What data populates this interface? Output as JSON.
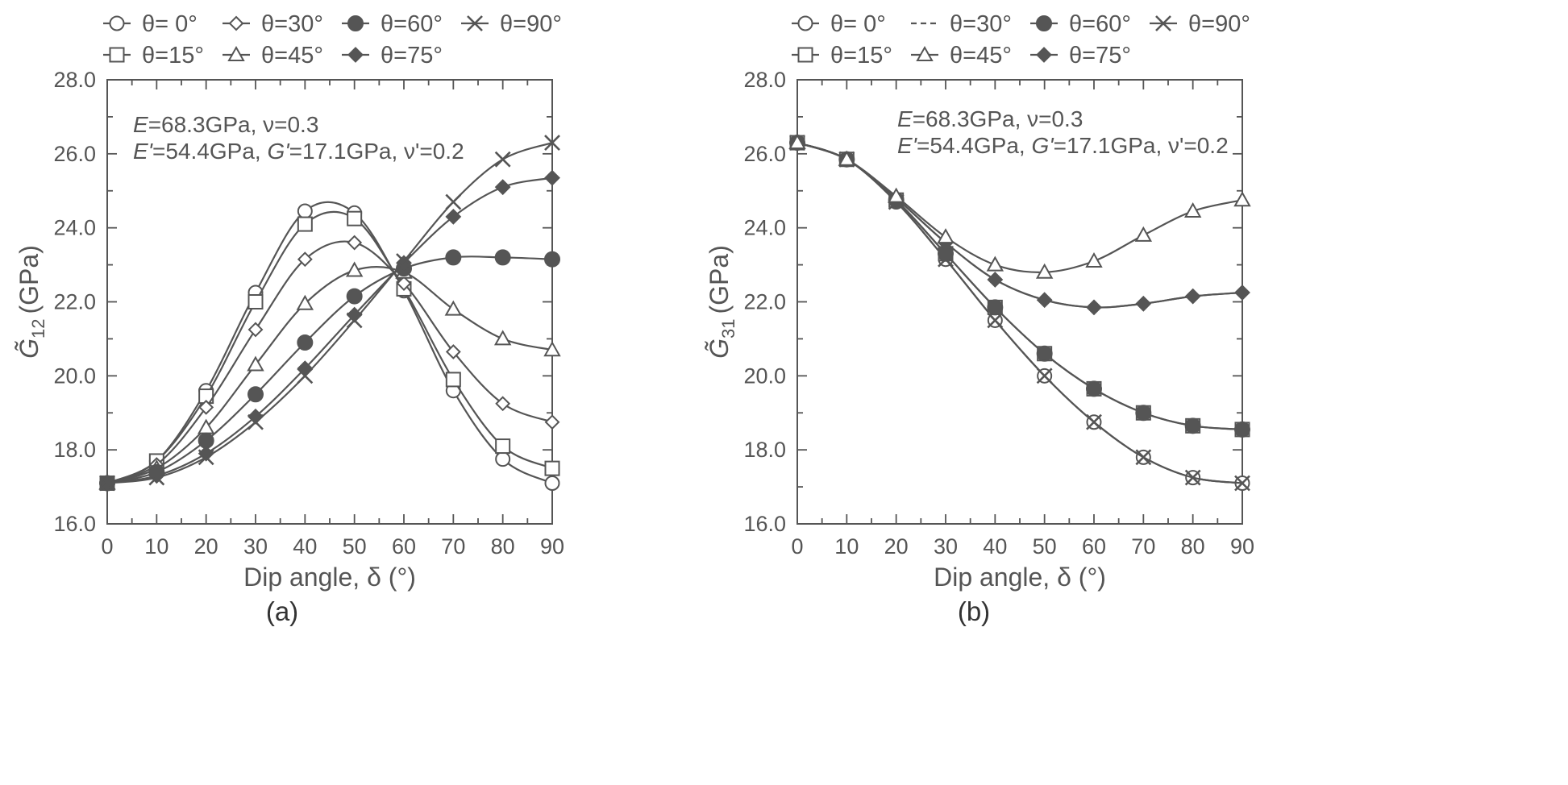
{
  "figure": {
    "panels": [
      "(a)",
      "(b)"
    ]
  },
  "colors": {
    "line": "#555555",
    "marker_fill": "#555555",
    "marker_open": "#ffffff",
    "axis": "#555555",
    "text": "#555555"
  },
  "chart_data": [
    {
      "type": "line",
      "panel_label": "(a)",
      "xlabel": "Dip angle, δ (°)",
      "ylabel_symbol": "G̃",
      "ylabel_subscript": "12",
      "ylabel_unit": "(GPa)",
      "x": [
        0,
        10,
        20,
        30,
        40,
        50,
        60,
        70,
        80,
        90
      ],
      "xlim": [
        0,
        90
      ],
      "ylim": [
        16.0,
        28.0
      ],
      "xticks": [
        "0",
        "10",
        "20",
        "30",
        "40",
        "50",
        "60",
        "70",
        "80",
        "90"
      ],
      "yticks": [
        "16.0",
        "18.0",
        "20.0",
        "22.0",
        "24.0",
        "26.0",
        "28.0"
      ],
      "annotation": {
        "line1": {
          "e_sym": "E",
          "e_val": "=68.3GPa, ν=0.3"
        },
        "line2": {
          "e_sym": "E'",
          "e_val": "=54.4GPa, ",
          "g_sym": "G'",
          "g_val": "=17.1GPa, ν'=0.2"
        }
      },
      "legend": [
        {
          "label": "θ= 0°",
          "marker": "circle-open"
        },
        {
          "label": "θ=30°",
          "marker": "diamond-open"
        },
        {
          "label": "θ=60°",
          "marker": "circle-filled"
        },
        {
          "label": "θ=90°",
          "marker": "cross"
        },
        {
          "label": "θ=15°",
          "marker": "square-open"
        },
        {
          "label": "θ=45°",
          "marker": "triangle-open"
        },
        {
          "label": "θ=75°",
          "marker": "diamond-filled"
        }
      ],
      "series": [
        {
          "name": "θ= 0°",
          "marker": "circle-open",
          "values": [
            17.1,
            17.7,
            19.6,
            22.25,
            24.45,
            24.4,
            22.3,
            19.6,
            17.75,
            17.1
          ]
        },
        {
          "name": "θ=15°",
          "marker": "square-open",
          "values": [
            17.1,
            17.7,
            19.45,
            22.0,
            24.1,
            24.25,
            22.35,
            19.9,
            18.1,
            17.5
          ]
        },
        {
          "name": "θ=30°",
          "marker": "diamond-open",
          "values": [
            17.1,
            17.6,
            19.15,
            21.25,
            23.15,
            23.6,
            22.5,
            20.65,
            19.25,
            18.75
          ]
        },
        {
          "name": "θ=45°",
          "marker": "triangle-open",
          "values": [
            17.1,
            17.5,
            18.6,
            20.3,
            21.95,
            22.85,
            22.8,
            21.8,
            21.0,
            20.7
          ]
        },
        {
          "name": "θ=60°",
          "marker": "circle-filled",
          "values": [
            17.1,
            17.4,
            18.25,
            19.5,
            20.9,
            22.15,
            22.9,
            23.2,
            23.2,
            23.15
          ]
        },
        {
          "name": "θ=75°",
          "marker": "diamond-filled",
          "values": [
            17.1,
            17.3,
            17.9,
            18.9,
            20.2,
            21.65,
            23.05,
            24.3,
            25.1,
            25.35
          ]
        },
        {
          "name": "θ=90°",
          "marker": "cross",
          "values": [
            17.1,
            17.25,
            17.8,
            18.75,
            20.0,
            21.5,
            23.1,
            24.7,
            25.85,
            26.3
          ]
        }
      ]
    },
    {
      "type": "line",
      "panel_label": "(b)",
      "xlabel": "Dip angle, δ (°)",
      "ylabel_symbol": "G̃",
      "ylabel_subscript": "31",
      "ylabel_unit": "(GPa)",
      "x": [
        0,
        10,
        20,
        30,
        40,
        50,
        60,
        70,
        80,
        90
      ],
      "xlim": [
        0,
        90
      ],
      "ylim": [
        16.0,
        28.0
      ],
      "xticks": [
        "0",
        "10",
        "20",
        "30",
        "40",
        "50",
        "60",
        "70",
        "80",
        "90"
      ],
      "yticks": [
        "16.0",
        "18.0",
        "20.0",
        "22.0",
        "24.0",
        "26.0",
        "28.0"
      ],
      "annotation": {
        "line1": {
          "e_sym": "E",
          "e_val": "=68.3GPa, ν=0.3"
        },
        "line2": {
          "e_sym": "E'",
          "e_val": "=54.4GPa, ",
          "g_sym": "G'",
          "g_val": "=17.1GPa, ν'=0.2"
        }
      },
      "legend": [
        {
          "label": "θ= 0°",
          "marker": "circle-open"
        },
        {
          "label": "θ=30°",
          "marker": "dashed"
        },
        {
          "label": "θ=60°",
          "marker": "circle-filled"
        },
        {
          "label": "θ=90°",
          "marker": "cross"
        },
        {
          "label": "θ=15°",
          "marker": "square-open"
        },
        {
          "label": "θ=45°",
          "marker": "triangle-open"
        },
        {
          "label": "θ=75°",
          "marker": "diamond-filled"
        }
      ],
      "series": [
        {
          "name": "θ= 0°",
          "marker": "circle-open",
          "values": [
            26.3,
            25.85,
            24.7,
            23.15,
            21.5,
            20.0,
            18.75,
            17.8,
            17.25,
            17.1
          ]
        },
        {
          "name": "θ=90°",
          "marker": "cross",
          "values": [
            26.3,
            25.85,
            24.7,
            23.15,
            21.5,
            20.0,
            18.75,
            17.8,
            17.25,
            17.1
          ]
        },
        {
          "name": "θ=15°",
          "marker": "square-open",
          "values": [
            26.3,
            25.85,
            24.75,
            23.3,
            21.85,
            20.6,
            19.65,
            19.0,
            18.65,
            18.55
          ]
        },
        {
          "name": "θ=60°",
          "marker": "circle-filled",
          "values": [
            26.3,
            25.85,
            24.75,
            23.3,
            21.85,
            20.6,
            19.65,
            19.0,
            18.65,
            18.55
          ]
        },
        {
          "name": "θ=30°",
          "marker": "diamond-open",
          "values": [
            26.3,
            25.85,
            24.8,
            23.6,
            22.6,
            22.05,
            21.85,
            21.95,
            22.15,
            22.25
          ]
        },
        {
          "name": "θ=75°",
          "marker": "diamond-filled",
          "values": [
            26.3,
            25.85,
            24.8,
            23.6,
            22.6,
            22.05,
            21.85,
            21.95,
            22.15,
            22.25
          ]
        },
        {
          "name": "θ=45°",
          "marker": "triangle-open",
          "values": [
            26.3,
            25.85,
            24.85,
            23.75,
            23.0,
            22.8,
            23.1,
            23.8,
            24.45,
            24.75
          ]
        }
      ]
    }
  ]
}
